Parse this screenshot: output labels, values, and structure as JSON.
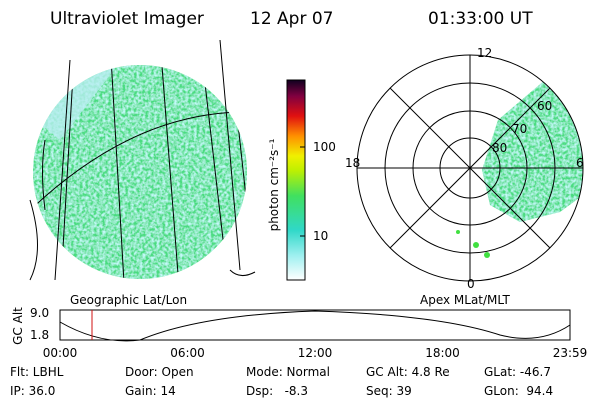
{
  "header": {
    "instrument": "Ultraviolet Imager",
    "date": "12 Apr 07",
    "time": "01:33:00 UT"
  },
  "colorbar": {
    "label": "photon cm⁻²s⁻¹",
    "ticks": [
      "100",
      "10"
    ]
  },
  "polar": {
    "top": "12",
    "bottom": "0",
    "left": "18",
    "right": "6",
    "rings": [
      "60",
      "70",
      "80"
    ]
  },
  "captions": {
    "left": "Geographic Lat/Lon",
    "right": "Apex MLat/MLT"
  },
  "altitude": {
    "label": "GC Alt",
    "ticks": [
      "9.0",
      "1.8"
    ],
    "times": [
      "00:00",
      "06:00",
      "12:00",
      "18:00",
      "23:59"
    ]
  },
  "info": [
    [
      "Flt: LBHL",
      "Door: Open",
      "Mode: Normal",
      "GC Alt: 4.8 Re",
      "GLat: -46.7"
    ],
    [
      "IP: 36.0",
      "Gain: 14",
      "Dsp:   -8.3",
      "Seq: 39",
      "GLon:  94.4"
    ]
  ]
}
